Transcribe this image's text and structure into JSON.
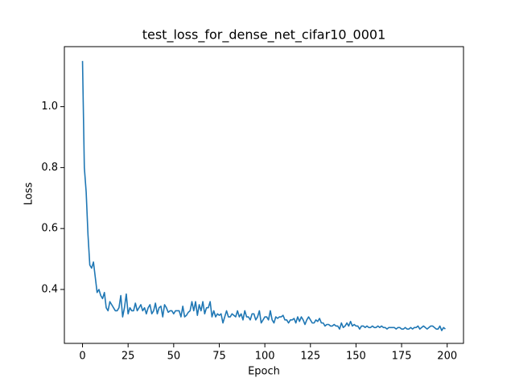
{
  "chart_data": {
    "type": "line",
    "title": "test_loss_for_dense_net_cifar10_0001",
    "x_label": "Epoch",
    "y_label": "Loss",
    "x": [
      0,
      1,
      2,
      3,
      4,
      5,
      6,
      7,
      8,
      9,
      10,
      11,
      12,
      13,
      14,
      15,
      16,
      17,
      18,
      19,
      20,
      21,
      22,
      23,
      24,
      25,
      26,
      27,
      28,
      29,
      30,
      31,
      32,
      33,
      34,
      35,
      36,
      37,
      38,
      39,
      40,
      41,
      42,
      43,
      44,
      45,
      46,
      47,
      48,
      49,
      50,
      51,
      52,
      53,
      54,
      55,
      56,
      57,
      58,
      59,
      60,
      61,
      62,
      63,
      64,
      65,
      66,
      67,
      68,
      69,
      70,
      71,
      72,
      73,
      74,
      75,
      76,
      77,
      78,
      79,
      80,
      81,
      82,
      83,
      84,
      85,
      86,
      87,
      88,
      89,
      90,
      91,
      92,
      93,
      94,
      95,
      96,
      97,
      98,
      99,
      100,
      101,
      102,
      103,
      104,
      105,
      106,
      107,
      108,
      109,
      110,
      111,
      112,
      113,
      114,
      115,
      116,
      117,
      118,
      119,
      120,
      121,
      122,
      123,
      124,
      125,
      126,
      127,
      128,
      129,
      130,
      131,
      132,
      133,
      134,
      135,
      136,
      137,
      138,
      139,
      140,
      141,
      142,
      143,
      144,
      145,
      146,
      147,
      148,
      149,
      150,
      151,
      152,
      153,
      154,
      155,
      156,
      157,
      158,
      159,
      160,
      161,
      162,
      163,
      164,
      165,
      166,
      167,
      168,
      169,
      170,
      171,
      172,
      173,
      174,
      175,
      176,
      177,
      178,
      179,
      180,
      181,
      182,
      183,
      184,
      185,
      186,
      187,
      188,
      189,
      190,
      191,
      192,
      193,
      194,
      195,
      196,
      197,
      198,
      199
    ],
    "series": [
      {
        "name": "test_loss",
        "color": "#1f77b4",
        "values": [
          1.15,
          0.8,
          0.72,
          0.58,
          0.48,
          0.47,
          0.49,
          0.44,
          0.39,
          0.4,
          0.38,
          0.37,
          0.39,
          0.34,
          0.33,
          0.36,
          0.35,
          0.34,
          0.33,
          0.33,
          0.34,
          0.38,
          0.31,
          0.34,
          0.385,
          0.32,
          0.34,
          0.33,
          0.33,
          0.355,
          0.33,
          0.34,
          0.35,
          0.33,
          0.34,
          0.32,
          0.34,
          0.35,
          0.32,
          0.33,
          0.355,
          0.32,
          0.34,
          0.345,
          0.31,
          0.35,
          0.34,
          0.325,
          0.33,
          0.33,
          0.32,
          0.33,
          0.33,
          0.33,
          0.31,
          0.345,
          0.31,
          0.315,
          0.325,
          0.33,
          0.36,
          0.33,
          0.36,
          0.315,
          0.35,
          0.33,
          0.36,
          0.32,
          0.34,
          0.34,
          0.36,
          0.31,
          0.33,
          0.31,
          0.32,
          0.315,
          0.32,
          0.29,
          0.31,
          0.33,
          0.31,
          0.31,
          0.32,
          0.315,
          0.31,
          0.33,
          0.31,
          0.32,
          0.3,
          0.33,
          0.31,
          0.31,
          0.3,
          0.32,
          0.32,
          0.3,
          0.31,
          0.33,
          0.29,
          0.3,
          0.31,
          0.31,
          0.3,
          0.33,
          0.3,
          0.29,
          0.31,
          0.305,
          0.31,
          0.31,
          0.315,
          0.3,
          0.3,
          0.29,
          0.3,
          0.3,
          0.305,
          0.29,
          0.31,
          0.295,
          0.31,
          0.3,
          0.285,
          0.3,
          0.31,
          0.3,
          0.29,
          0.29,
          0.3,
          0.295,
          0.305,
          0.29,
          0.29,
          0.28,
          0.285,
          0.285,
          0.28,
          0.28,
          0.285,
          0.28,
          0.28,
          0.27,
          0.29,
          0.275,
          0.28,
          0.29,
          0.28,
          0.295,
          0.28,
          0.285,
          0.28,
          0.28,
          0.27,
          0.28,
          0.28,
          0.275,
          0.28,
          0.275,
          0.275,
          0.28,
          0.275,
          0.275,
          0.28,
          0.275,
          0.28,
          0.275,
          0.275,
          0.27,
          0.275,
          0.275,
          0.275,
          0.275,
          0.27,
          0.275,
          0.275,
          0.27,
          0.27,
          0.275,
          0.27,
          0.27,
          0.275,
          0.27,
          0.275,
          0.275,
          0.28,
          0.27,
          0.275,
          0.28,
          0.275,
          0.27,
          0.275,
          0.28,
          0.28,
          0.275,
          0.27,
          0.27,
          0.28,
          0.265,
          0.275,
          0.27
        ]
      }
    ],
    "xlim": [
      -9.95,
      208.95
    ],
    "ylim": [
      0.223,
      1.197
    ],
    "xticks": [
      0,
      25,
      50,
      75,
      100,
      125,
      150,
      175,
      200
    ],
    "yticks": [
      0.4,
      0.6,
      0.8,
      {
        "value": 1,
        "label": "1.0"
      }
    ]
  }
}
